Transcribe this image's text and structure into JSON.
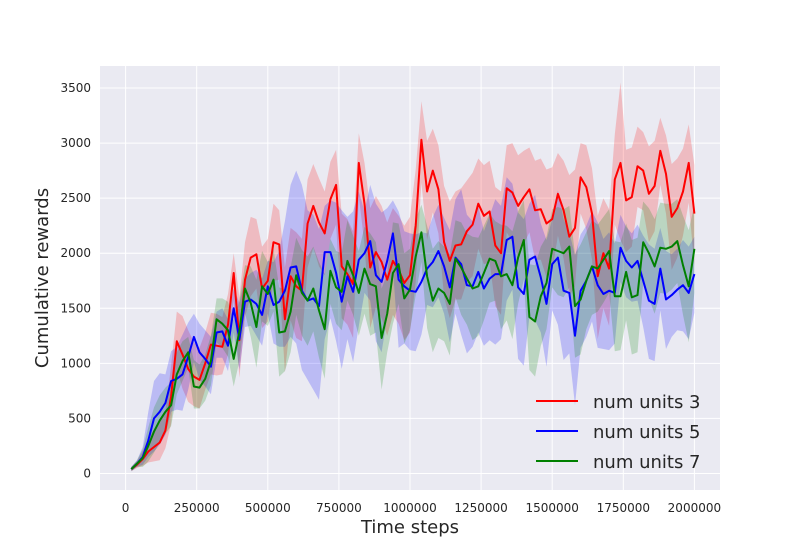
{
  "chart_data": {
    "type": "line",
    "title": "",
    "xlabel": "Time steps",
    "ylabel": "Cumulative rewards",
    "xlim": [
      -90000,
      2090000
    ],
    "ylim": [
      -150,
      3700
    ],
    "xticks": [
      0,
      250000,
      500000,
      750000,
      1000000,
      1250000,
      1500000,
      1750000,
      2000000
    ],
    "xtick_labels": [
      "0",
      "250000",
      "500000",
      "750000",
      "1000000",
      "1250000",
      "1500000",
      "1750000",
      "2000000"
    ],
    "yticks": [
      0,
      500,
      1000,
      1500,
      2000,
      2500,
      3000,
      3500
    ],
    "ytick_labels": [
      "0",
      "500",
      "1000",
      "1500",
      "2000",
      "2500",
      "3000",
      "3500"
    ],
    "grid": true,
    "legend_position": "bottom-right",
    "x": [
      20000,
      40000,
      60000,
      80000,
      100000,
      120000,
      140000,
      160000,
      180000,
      200000,
      220000,
      240000,
      260000,
      280000,
      300000,
      320000,
      340000,
      360000,
      380000,
      400000,
      420000,
      440000,
      460000,
      480000,
      500000,
      520000,
      540000,
      560000,
      580000,
      600000,
      620000,
      640000,
      660000,
      680000,
      700000,
      720000,
      740000,
      760000,
      780000,
      800000,
      820000,
      840000,
      860000,
      880000,
      900000,
      920000,
      940000,
      960000,
      980000,
      1000000,
      1020000,
      1040000,
      1060000,
      1080000,
      1100000,
      1120000,
      1140000,
      1160000,
      1180000,
      1200000,
      1220000,
      1240000,
      1260000,
      1280000,
      1300000,
      1320000,
      1340000,
      1360000,
      1380000,
      1400000,
      1420000,
      1440000,
      1460000,
      1480000,
      1500000,
      1520000,
      1540000,
      1560000,
      1580000,
      1600000,
      1620000,
      1640000,
      1660000,
      1680000,
      1700000,
      1720000,
      1740000,
      1760000,
      1780000,
      1800000,
      1820000,
      1840000,
      1860000,
      1880000,
      1900000,
      1920000,
      1940000,
      1960000,
      1980000,
      2000000
    ],
    "series": [
      {
        "name": "num units 3",
        "color": "#ff0000",
        "values": [
          40,
          80,
          130,
          200,
          240,
          280,
          390,
          700,
          1200,
          1080,
          950,
          880,
          850,
          1000,
          1170,
          1160,
          1150,
          1350,
          1820,
          1210,
          1760,
          1960,
          1990,
          1680,
          1750,
          2100,
          2080,
          1400,
          1790,
          1700,
          1660,
          2270,
          2430,
          2280,
          2180,
          2490,
          2620,
          1880,
          1810,
          1720,
          2820,
          2450,
          1870,
          2010,
          1920,
          1760,
          1930,
          1850,
          1730,
          1800,
          2250,
          3030,
          2560,
          2750,
          2580,
          2100,
          1930,
          2070,
          2080,
          2200,
          2260,
          2450,
          2340,
          2380,
          2070,
          2000,
          2590,
          2550,
          2430,
          2510,
          2580,
          2390,
          2400,
          2270,
          2310,
          2540,
          2390,
          2150,
          2230,
          2690,
          2600,
          2360,
          1790,
          2000,
          1860,
          2670,
          2820,
          2480,
          2510,
          2790,
          2750,
          2540,
          2610,
          2930,
          2720,
          2330,
          2410,
          2560,
          2820,
          2360
        ],
        "upper": [
          60,
          110,
          200,
          320,
          400,
          470,
          560,
          980,
          1470,
          1430,
          1300,
          1190,
          1140,
          1280,
          1460,
          1450,
          1420,
          1630,
          2000,
          1600,
          2100,
          2330,
          2310,
          2060,
          2130,
          2450,
          2390,
          1870,
          2230,
          2190,
          2130,
          2670,
          2810,
          2680,
          2560,
          2830,
          2940,
          2360,
          2310,
          2200,
          3090,
          2820,
          2410,
          2520,
          2430,
          2280,
          2410,
          2340,
          2250,
          2330,
          2760,
          3380,
          3020,
          3130,
          2980,
          2610,
          2470,
          2560,
          2590,
          2660,
          2730,
          2860,
          2800,
          2840,
          2600,
          2560,
          2980,
          3000,
          2890,
          2930,
          2960,
          2840,
          2860,
          2760,
          2780,
          2910,
          2840,
          2710,
          2760,
          3000,
          2980,
          2770,
          2340,
          2500,
          2400,
          3080,
          3550,
          2940,
          2960,
          3150,
          3100,
          2970,
          3020,
          3230,
          3070,
          2810,
          2860,
          2950,
          3170,
          2800
        ],
        "lower": [
          20,
          50,
          70,
          100,
          110,
          120,
          230,
          450,
          950,
          770,
          650,
          610,
          590,
          760,
          900,
          890,
          900,
          1080,
          1580,
          870,
          1420,
          1610,
          1680,
          1320,
          1380,
          1750,
          1760,
          920,
          1390,
          1230,
          1200,
          1870,
          2050,
          1880,
          1800,
          2130,
          2260,
          1410,
          1350,
          1230,
          2520,
          2080,
          1320,
          1510,
          1410,
          1250,
          1440,
          1360,
          1210,
          1280,
          1740,
          2640,
          2120,
          2370,
          2180,
          1600,
          1410,
          1580,
          1580,
          1740,
          1790,
          2040,
          1900,
          1920,
          1520,
          1440,
          2190,
          2100,
          1970,
          2080,
          2190,
          1940,
          1940,
          1780,
          1830,
          2160,
          1950,
          1610,
          1700,
          2360,
          2220,
          1940,
          1220,
          1500,
          1340,
          2260,
          2120,
          2010,
          2060,
          2420,
          2390,
          2100,
          2200,
          2620,
          2360,
          1850,
          1960,
          2160,
          2460,
          1880
        ]
      },
      {
        "name": "num units 5",
        "color": "#0000ff",
        "values": [
          40,
          90,
          150,
          300,
          500,
          560,
          640,
          840,
          860,
          900,
          1060,
          1240,
          1100,
          1040,
          970,
          1280,
          1290,
          1160,
          1500,
          1220,
          1560,
          1580,
          1540,
          1440,
          1700,
          1530,
          1560,
          1660,
          1870,
          1880,
          1660,
          1570,
          1590,
          1520,
          2010,
          2010,
          1820,
          1560,
          1790,
          1650,
          1940,
          2000,
          2110,
          1800,
          1740,
          1930,
          2180,
          1760,
          1700,
          1660,
          1650,
          1740,
          1860,
          1920,
          2020,
          1880,
          1690,
          1960,
          1900,
          1710,
          1700,
          1830,
          1680,
          1770,
          1810,
          1810,
          2120,
          2150,
          1690,
          1630,
          1940,
          1970,
          1780,
          1540,
          1900,
          1960,
          1660,
          1640,
          1250,
          1660,
          1750,
          1880,
          1710,
          1630,
          1660,
          1640,
          2050,
          1930,
          1870,
          1930,
          1750,
          1570,
          1540,
          1860,
          1580,
          1620,
          1670,
          1710,
          1640,
          1810
        ],
        "upper": [
          60,
          120,
          240,
          560,
          840,
          910,
          900,
          1110,
          1150,
          1260,
          1370,
          1450,
          1360,
          1300,
          1240,
          1470,
          1500,
          1400,
          1680,
          1550,
          1770,
          1820,
          1850,
          1770,
          1930,
          1920,
          2020,
          2290,
          2620,
          2750,
          2620,
          2390,
          2350,
          2220,
          2430,
          2480,
          2460,
          2390,
          2330,
          2380,
          2560,
          2380,
          2620,
          2450,
          2370,
          2410,
          2480,
          2380,
          2200,
          2180,
          2170,
          2190,
          2180,
          2330,
          2440,
          2320,
          2210,
          2490,
          2580,
          2350,
          2290,
          2430,
          2200,
          2340,
          2490,
          2430,
          2690,
          2630,
          2370,
          2310,
          2450,
          2530,
          2270,
          2120,
          2310,
          2570,
          2310,
          2190,
          1980,
          2170,
          2250,
          2380,
          2280,
          2130,
          2190,
          2090,
          2350,
          2240,
          2180,
          2260,
          2160,
          2080,
          2040,
          2230,
          2020,
          1990,
          2040,
          2120,
          2060,
          2150
        ],
        "lower": [
          20,
          60,
          80,
          150,
          200,
          260,
          350,
          560,
          580,
          570,
          760,
          1010,
          850,
          790,
          720,
          1050,
          1050,
          930,
          1280,
          940,
          1330,
          1340,
          1250,
          1160,
          1450,
          1180,
          1150,
          1150,
          1240,
          1180,
          940,
          850,
          760,
          670,
          1220,
          1410,
          1200,
          950,
          1220,
          1010,
          1340,
          1640,
          1570,
          1200,
          1100,
          1420,
          1860,
          1140,
          1180,
          1120,
          1110,
          1260,
          1530,
          1510,
          1600,
          1450,
          1190,
          1450,
          1260,
          1090,
          1150,
          1280,
          1160,
          1210,
          1170,
          1220,
          1570,
          1670,
          1040,
          980,
          1420,
          1390,
          1280,
          970,
          1480,
          1350,
          1030,
          1090,
          620,
          1140,
          1240,
          1380,
          1140,
          1130,
          1120,
          1180,
          1740,
          1600,
          1560,
          1570,
          1330,
          1040,
          1020,
          1480,
          1130,
          1240,
          1300,
          1290,
          1220,
          1460
        ]
      },
      {
        "name": "num units 7",
        "color": "#008000",
        "values": [
          40,
          90,
          140,
          250,
          380,
          480,
          560,
          620,
          900,
          1020,
          1100,
          790,
          780,
          860,
          1020,
          1400,
          1360,
          1300,
          1040,
          1290,
          1680,
          1550,
          1330,
          1700,
          1630,
          1760,
          1280,
          1290,
          1470,
          1800,
          1640,
          1570,
          1680,
          1480,
          1310,
          1840,
          1690,
          1650,
          1930,
          1800,
          1640,
          1860,
          1720,
          1700,
          1230,
          1450,
          1820,
          1900,
          1590,
          1670,
          1970,
          2190,
          1790,
          1570,
          1680,
          1640,
          1540,
          1950,
          1870,
          1770,
          1680,
          1700,
          1820,
          1950,
          1930,
          1790,
          1810,
          1710,
          1960,
          2120,
          1420,
          1380,
          1610,
          1730,
          2040,
          2020,
          2000,
          2060,
          1520,
          1580,
          1750,
          1880,
          1860,
          1940,
          2020,
          1610,
          1610,
          1830,
          1600,
          1620,
          2100,
          2000,
          1880,
          2050,
          2040,
          2060,
          2110,
          1890,
          1700,
          2040
        ],
        "upper": [
          60,
          120,
          220,
          420,
          600,
          710,
          780,
          830,
          1100,
          1200,
          1240,
          1030,
          990,
          1080,
          1250,
          1590,
          1590,
          1560,
          1390,
          1570,
          1890,
          1880,
          1760,
          2020,
          1920,
          2040,
          1690,
          1670,
          1870,
          2140,
          2030,
          1970,
          2060,
          1920,
          1810,
          2130,
          2020,
          2000,
          2300,
          2160,
          2020,
          2240,
          2180,
          2100,
          1680,
          1810,
          2280,
          2270,
          2000,
          2040,
          2310,
          2440,
          2250,
          2040,
          2110,
          2060,
          1990,
          2300,
          2280,
          2180,
          2150,
          2140,
          2250,
          2360,
          2290,
          2260,
          2250,
          2200,
          2380,
          2480,
          1900,
          1890,
          2060,
          2150,
          2400,
          2420,
          2400,
          2430,
          1990,
          2080,
          2190,
          2300,
          2260,
          2330,
          2400,
          2110,
          2100,
          2270,
          2120,
          2140,
          2470,
          2410,
          2310,
          2460,
          2450,
          2450,
          2490,
          2340,
          2210,
          2440
        ],
        "lower": [
          20,
          60,
          60,
          110,
          190,
          280,
          360,
          430,
          720,
          840,
          960,
          590,
          590,
          660,
          800,
          1190,
          1140,
          1060,
          790,
          1020,
          1460,
          1240,
          960,
          1380,
          1340,
          1470,
          880,
          930,
          1100,
          1440,
          1250,
          1160,
          1290,
          1050,
          860,
          1540,
          1360,
          1300,
          1570,
          1440,
          1250,
          1450,
          1250,
          1280,
          760,
          1100,
          1360,
          1540,
          1180,
          1300,
          1620,
          1920,
          1320,
          1100,
          1230,
          1200,
          1070,
          1600,
          1440,
          1350,
          1210,
          1250,
          1390,
          1550,
          1570,
          1310,
          1390,
          1220,
          1540,
          1760,
          940,
          880,
          1160,
          1310,
          1690,
          1620,
          1600,
          1690,
          1050,
          1080,
          1310,
          1440,
          1470,
          1550,
          1640,
          1110,
          1120,
          1390,
          1080,
          1100,
          1730,
          1590,
          1450,
          1640,
          1630,
          1670,
          1730,
          1440,
          1190,
          1640
        ]
      }
    ]
  }
}
